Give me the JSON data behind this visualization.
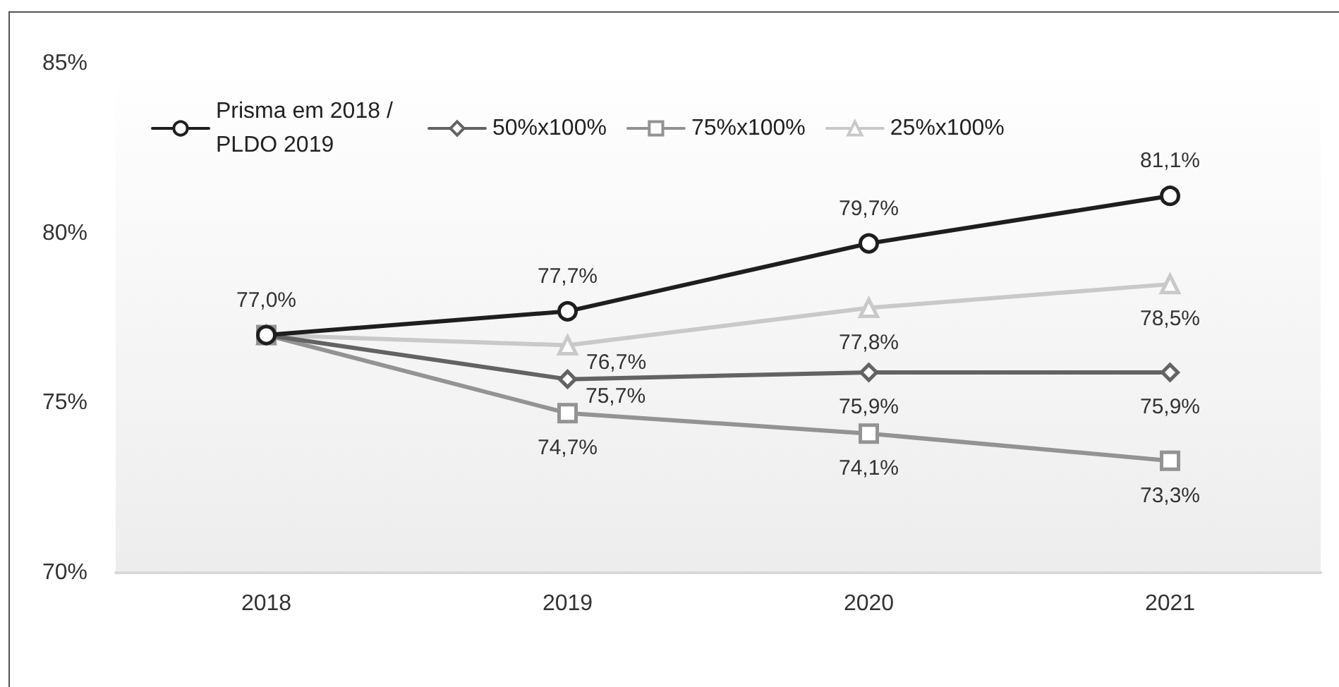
{
  "chart_data": {
    "type": "line",
    "categories": [
      "2018",
      "2019",
      "2020",
      "2021"
    ],
    "series": [
      {
        "name": "Prisma em 2018 / PLDO 2019",
        "color": "#1e1e1e",
        "marker": "circle",
        "values": [
          77.0,
          77.7,
          79.7,
          81.1
        ],
        "value_labels": [
          "77,0%",
          "77,7%",
          "79,7%",
          "81,1%"
        ]
      },
      {
        "name": "50%x100%",
        "color": "#636363",
        "marker": "diamond",
        "values": [
          77.0,
          75.7,
          75.9,
          75.9
        ],
        "value_labels": [
          null,
          "75,7%",
          "75,9%",
          "75,9%"
        ]
      },
      {
        "name": "75%x100%",
        "color": "#939393",
        "marker": "square",
        "values": [
          77.0,
          74.7,
          74.1,
          73.3
        ],
        "value_labels": [
          null,
          "74,7%",
          "74,1%",
          "73,3%"
        ]
      },
      {
        "name": "25%x100%",
        "color": "#c9c9c9",
        "marker": "triangle",
        "values": [
          77.0,
          76.7,
          77.8,
          78.5
        ],
        "value_labels": [
          null,
          "76,7%",
          "77,8%",
          "78,5%"
        ]
      }
    ],
    "ylim": [
      70,
      85
    ],
    "yticks": [
      {
        "value": 70,
        "label": "70%"
      },
      {
        "value": 75,
        "label": "75%"
      },
      {
        "value": 80,
        "label": "80%"
      },
      {
        "value": 85,
        "label": "85%"
      }
    ],
    "grid": false,
    "legend": "top left"
  }
}
